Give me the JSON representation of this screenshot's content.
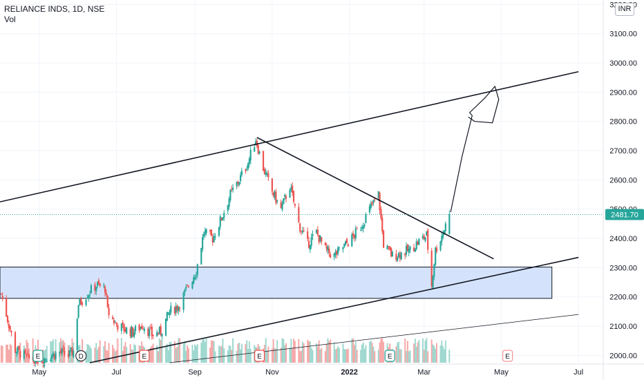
{
  "legend": {
    "symbol": "RELIANCE INDS, 1D, NSE",
    "volume": "Vol"
  },
  "unit_badge": "INR",
  "price_tag": "2481.70",
  "colors": {
    "up": "#26a69a",
    "down": "#ef5350",
    "vol_up": "#9fd8cf",
    "vol_down": "#f6a9a8",
    "zone_fill": "#d4e3fb",
    "line": "#131722",
    "grid": "#f0f3fa",
    "price_line": "#26a69a"
  },
  "chart_data": {
    "type": "candlestick",
    "symbol": "RELIANCE INDS",
    "interval": "1D",
    "exchange": "NSE",
    "y_axis": {
      "ticks": [
        2000,
        2100,
        2200,
        2300,
        2400,
        2500,
        2600,
        2700,
        2800,
        2900,
        3000,
        3100,
        3200
      ],
      "tick_labels": [
        "2000.00",
        "2100.00",
        "2200.00",
        "2300.00",
        "2400.00",
        "2500.00",
        "2600.00",
        "2700.00",
        "2800.00",
        "2900.00",
        "3000.00",
        "3100.00",
        "3200.00"
      ],
      "range": [
        1975,
        3215
      ]
    },
    "x_axis": {
      "tick_labels": [
        "May",
        "Jul",
        "Sep",
        "Nov",
        "2022",
        "Mar",
        "May",
        "Jul"
      ],
      "tick_dates": [
        "2021-05-01",
        "2021-07-01",
        "2021-09-01",
        "2021-11-01",
        "2022-01-01",
        "2022-03-01",
        "2022-05-01",
        "2022-07-01"
      ],
      "range": [
        "2021-03-31",
        "2022-07-20"
      ]
    },
    "last_price": 2481.7,
    "price_path": [
      [
        "2021-04-01",
        2210
      ],
      [
        "2021-04-12",
        2020
      ],
      [
        "2021-04-22",
        1990
      ],
      [
        "2021-05-03",
        1985
      ],
      [
        "2021-05-10",
        2000
      ],
      [
        "2021-05-17",
        2010
      ],
      [
        "2021-05-24",
        2000
      ],
      [
        "2021-05-28",
        2015
      ],
      [
        "2021-06-01",
        2175
      ],
      [
        "2021-06-08",
        2210
      ],
      [
        "2021-06-15",
        2240
      ],
      [
        "2021-06-22",
        2230
      ],
      [
        "2021-06-24",
        2150
      ],
      [
        "2021-06-30",
        2110
      ],
      [
        "2021-07-07",
        2090
      ],
      [
        "2021-07-14",
        2080
      ],
      [
        "2021-07-22",
        2105
      ],
      [
        "2021-07-29",
        2070
      ],
      [
        "2021-08-05",
        2080
      ],
      [
        "2021-08-12",
        2150
      ],
      [
        "2021-08-19",
        2170
      ],
      [
        "2021-08-26",
        2230
      ],
      [
        "2021-09-02",
        2290
      ],
      [
        "2021-09-08",
        2420
      ],
      [
        "2021-09-15",
        2400
      ],
      [
        "2021-09-22",
        2470
      ],
      [
        "2021-09-29",
        2550
      ],
      [
        "2021-10-06",
        2600
      ],
      [
        "2021-10-13",
        2660
      ],
      [
        "2021-10-19",
        2740
      ],
      [
        "2021-10-25",
        2640
      ],
      [
        "2021-11-01",
        2560
      ],
      [
        "2021-11-08",
        2500
      ],
      [
        "2021-11-15",
        2580
      ],
      [
        "2021-11-22",
        2450
      ],
      [
        "2021-11-29",
        2380
      ],
      [
        "2021-12-06",
        2420
      ],
      [
        "2021-12-13",
        2360
      ],
      [
        "2021-12-20",
        2340
      ],
      [
        "2021-12-27",
        2370
      ],
      [
        "2022-01-03",
        2400
      ],
      [
        "2022-01-10",
        2440
      ],
      [
        "2022-01-17",
        2500
      ],
      [
        "2022-01-24",
        2550
      ],
      [
        "2022-01-28",
        2380
      ],
      [
        "2022-02-04",
        2340
      ],
      [
        "2022-02-11",
        2350
      ],
      [
        "2022-02-18",
        2360
      ],
      [
        "2022-02-25",
        2390
      ],
      [
        "2022-03-03",
        2410
      ],
      [
        "2022-03-07",
        2240
      ],
      [
        "2022-03-10",
        2360
      ],
      [
        "2022-03-16",
        2420
      ],
      [
        "2022-03-21",
        2482
      ]
    ],
    "volume_label": "Vol",
    "event_markers": [
      {
        "label": "E",
        "date": "2021-04-30"
      },
      {
        "label": "D",
        "date": "2021-06-03"
      },
      {
        "label": "E",
        "date": "2021-07-23"
      },
      {
        "label": "E",
        "date": "2021-10-22"
      },
      {
        "label": "E",
        "date": "2022-02-02"
      },
      {
        "label": "E",
        "date": "2022-05-06"
      }
    ],
    "drawings": {
      "upper_channel_line": {
        "from": [
          "2021-03-31",
          2525
        ],
        "to": [
          "2022-07-01",
          2970
        ]
      },
      "resistance_line": {
        "from": [
          "2021-10-20",
          2745
        ],
        "to": [
          "2022-04-25",
          2330
        ]
      },
      "support_line": {
        "from": [
          "2021-06-10",
          1975
        ],
        "to": [
          "2022-07-01",
          2335
        ]
      },
      "lower_parallel_line": {
        "from": [
          "2021-08-12",
          1975
        ],
        "to": [
          "2022-07-01",
          2140
        ]
      },
      "demand_zone": {
        "from_date": "2021-03-31",
        "to_date": "2022-06-10",
        "low": 2195,
        "high": 2302
      },
      "projection_path": [
        [
          "2022-03-22",
          2490
        ],
        [
          "2022-03-31",
          2680
        ],
        [
          "2022-04-08",
          2820
        ],
        [
          "2022-04-06",
          2830
        ],
        [
          "2022-04-18",
          2880
        ],
        [
          "2022-04-26",
          2920
        ],
        [
          "2022-04-29",
          2875
        ],
        [
          "2022-04-24",
          2795
        ],
        [
          "2022-04-10",
          2800
        ],
        [
          "2022-04-05",
          2815
        ]
      ]
    }
  }
}
